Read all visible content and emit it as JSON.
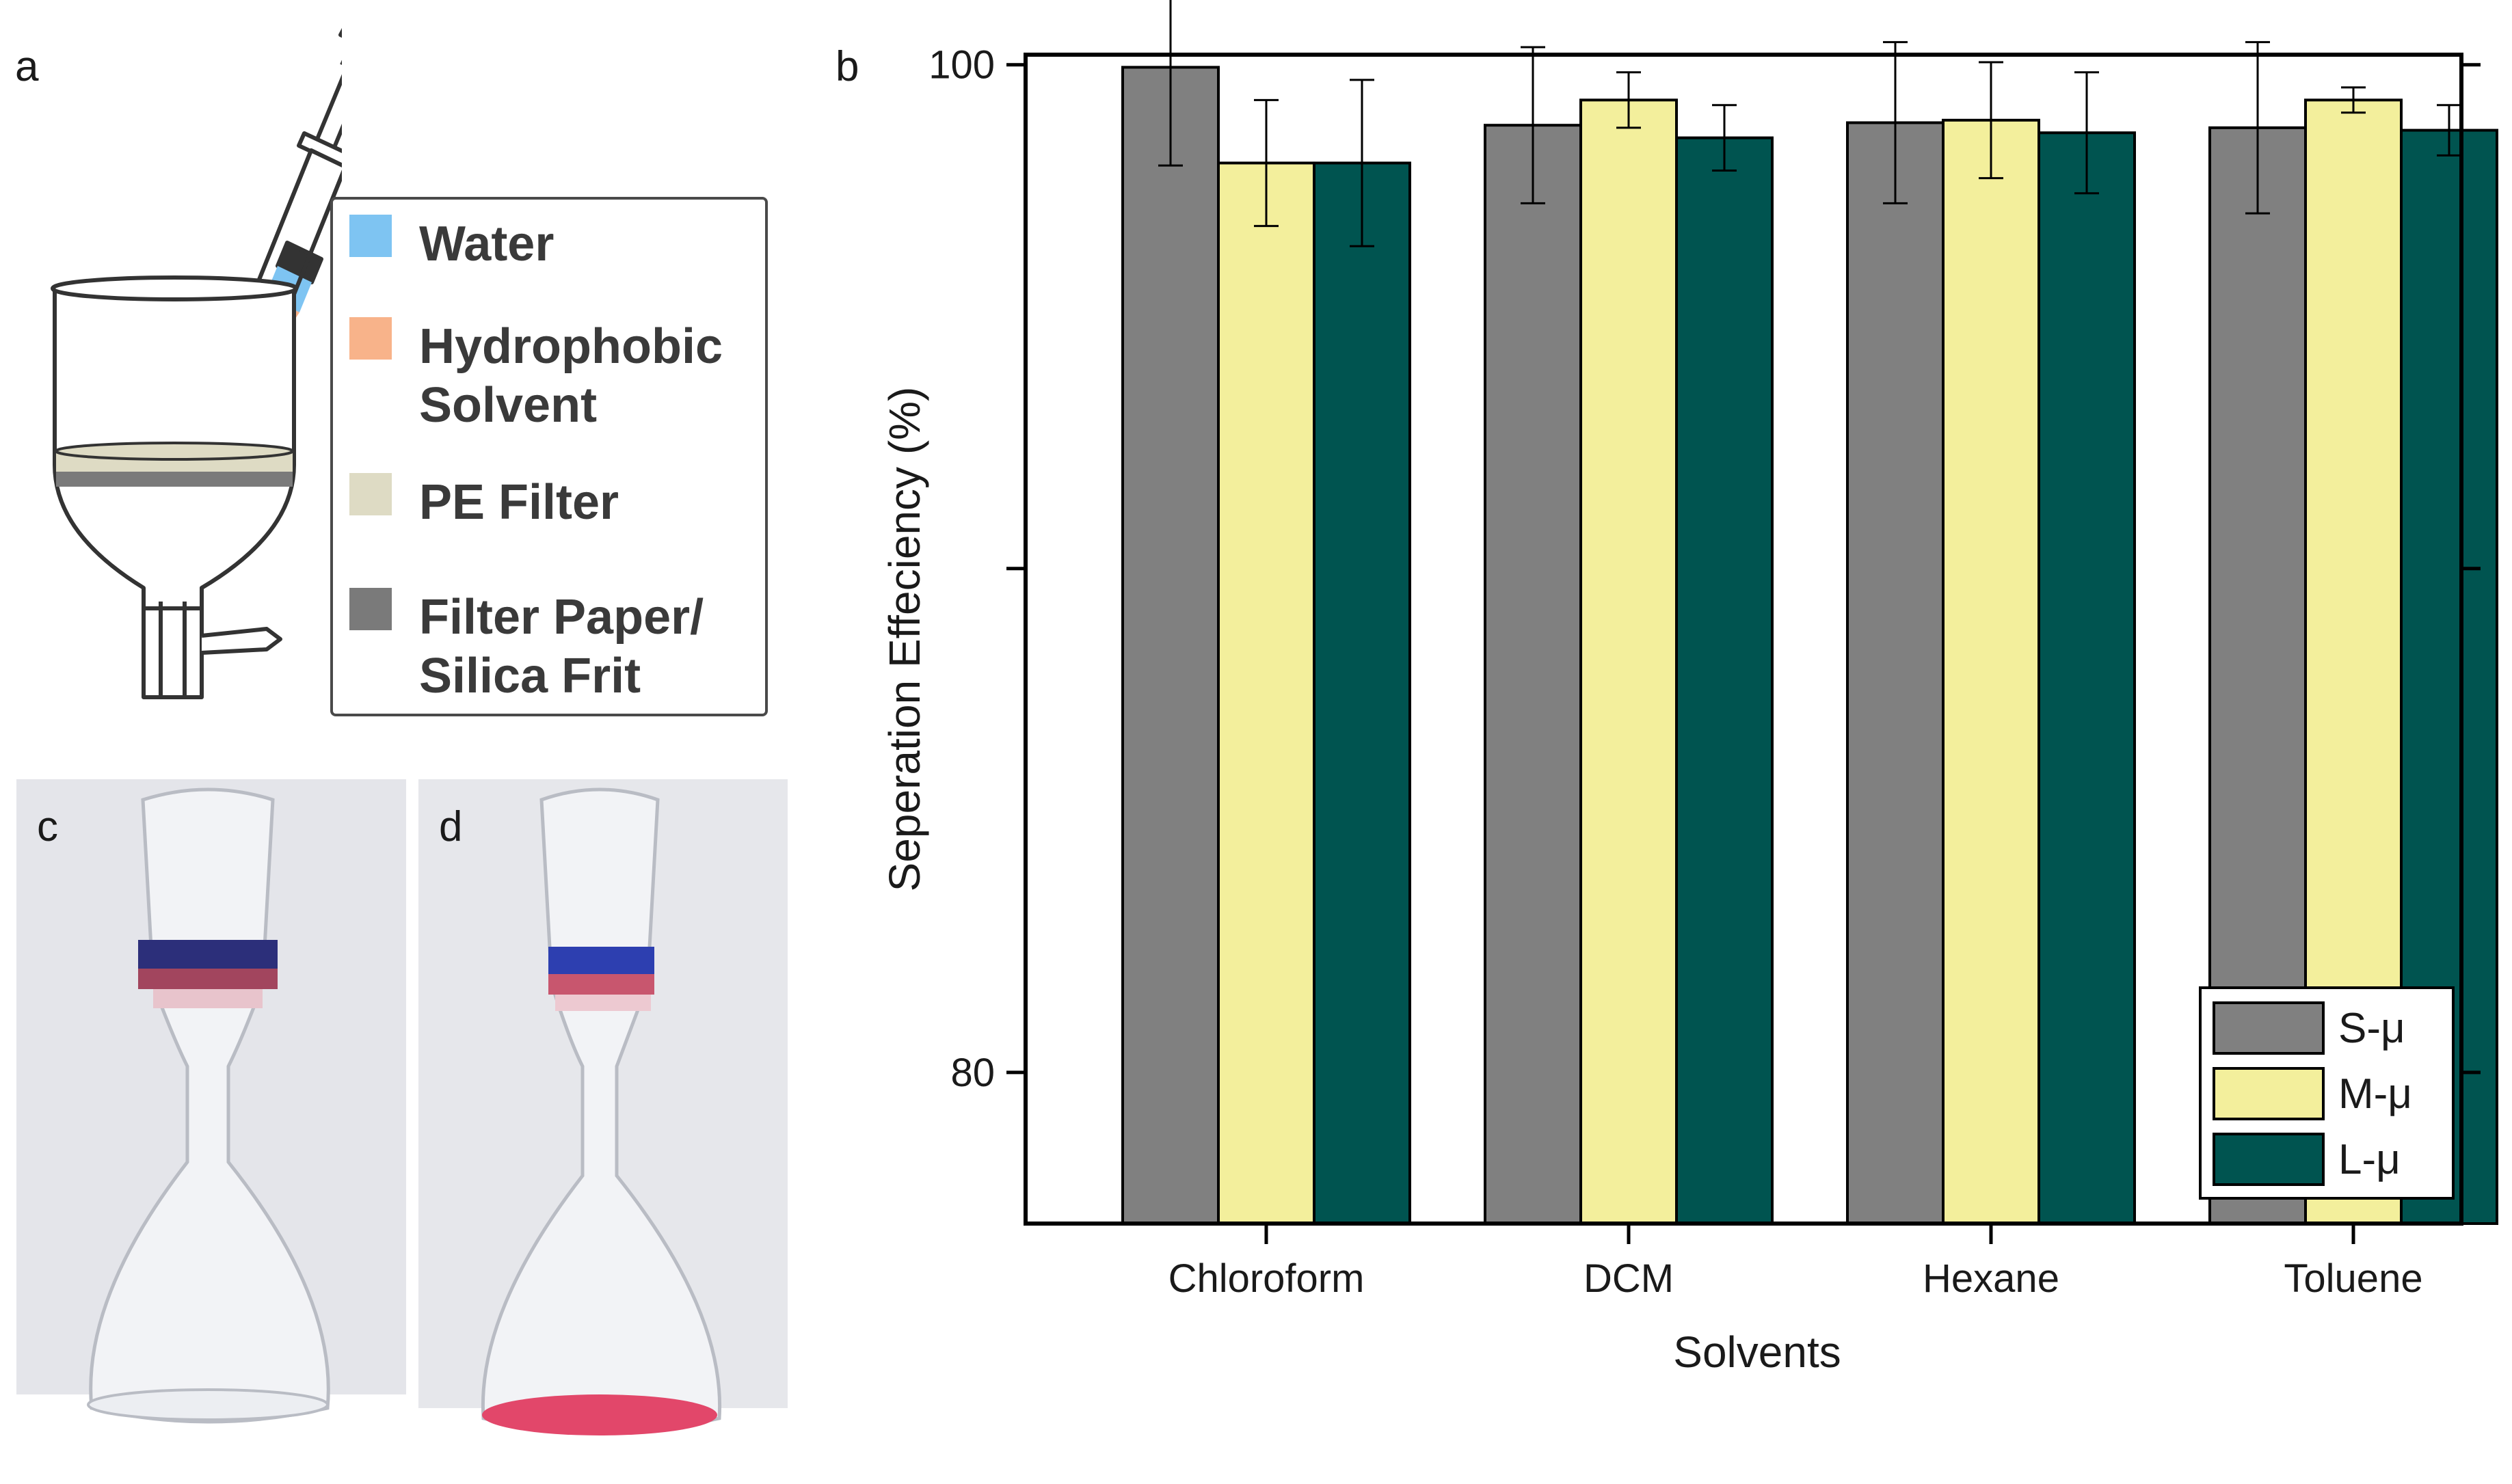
{
  "panels": {
    "a": "a",
    "b": "b",
    "c": "c",
    "d": "d"
  },
  "panel_a": {
    "legend": [
      {
        "label_lines": [
          "Water"
        ],
        "color": "#7ec4f2",
        "icon": "water-swatch"
      },
      {
        "label_lines": [
          "Hydrophobic",
          "Solvent"
        ],
        "color": "#f8b38a",
        "icon": "solvent-swatch"
      },
      {
        "label_lines": [
          "PE Filter"
        ],
        "color": "#dedbc4",
        "icon": "pe-filter-swatch"
      },
      {
        "label_lines": [
          "Filter Paper/",
          "Silica Frit"
        ],
        "color": "#7a7a7a",
        "icon": "filter-paper-swatch"
      }
    ]
  },
  "colors": {
    "s": "#808080",
    "m": "#f3ef9c",
    "l": "#005450",
    "frame": "#000000",
    "photo_bg": "#e6e7eb",
    "blue_dye": "#2d3fb0",
    "red_dye": "#e2476a"
  },
  "chart_data": {
    "type": "bar",
    "title": "",
    "xlabel": "Solvents",
    "ylabel": "Seperation Effeciency (%)",
    "categories": [
      "Chloroform",
      "DCM",
      "Hexane",
      "Toluene"
    ],
    "ylim": [
      77,
      100.2
    ],
    "yticks": [
      80,
      90,
      100
    ],
    "ytick_labels": [
      "80",
      "",
      "100"
    ],
    "legend_position": "bottom-right",
    "series": [
      {
        "name": "S-μ",
        "values": [
          99.95,
          98.8,
          98.85,
          98.75
        ],
        "errors": [
          1.95,
          1.55,
          1.6,
          1.7
        ]
      },
      {
        "name": "M-μ",
        "values": [
          98.05,
          99.3,
          98.9,
          99.3
        ],
        "errors": [
          1.25,
          0.55,
          1.15,
          0.25
        ]
      },
      {
        "name": "L-μ",
        "values": [
          98.05,
          98.55,
          98.65,
          98.7
        ],
        "errors": [
          1.65,
          0.65,
          1.2,
          0.5
        ]
      }
    ]
  }
}
